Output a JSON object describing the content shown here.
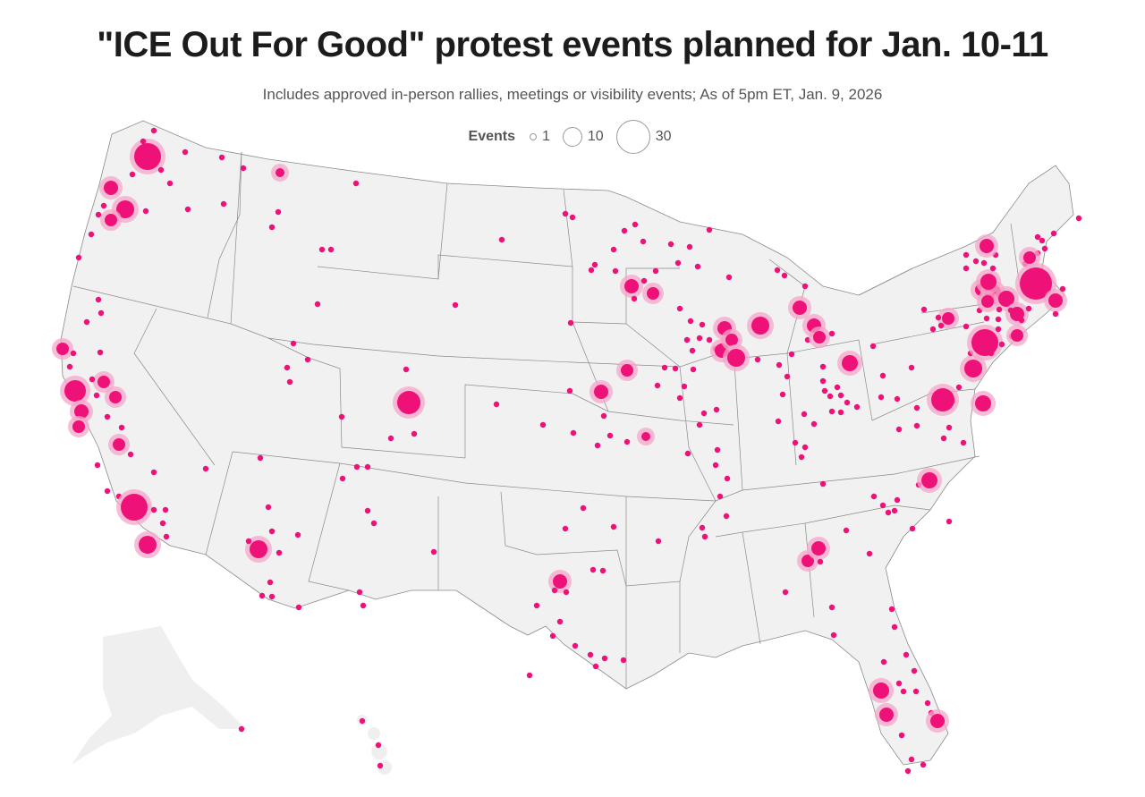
{
  "header": {
    "title": "\"ICE Out For Good\" protest events planned for Jan. 10-11",
    "subtitle": "Includes approved in-person rallies, meetings or visibility events; As of 5pm ET, Jan. 9, 2026"
  },
  "legend": {
    "label": "Events",
    "items": [
      {
        "value": "1"
      },
      {
        "value": "10"
      },
      {
        "value": "30"
      }
    ]
  },
  "colors": {
    "marker": "#ee1177",
    "halo": "#f5a6c8",
    "land": "#f1f1f1",
    "border": "#8a8a8a"
  }
}
